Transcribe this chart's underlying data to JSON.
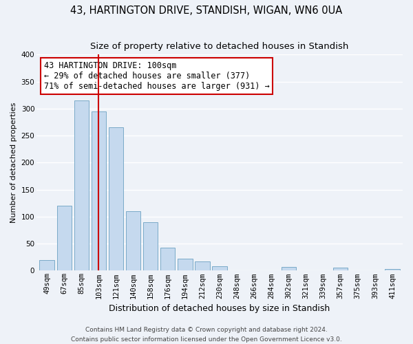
{
  "title": "43, HARTINGTON DRIVE, STANDISH, WIGAN, WN6 0UA",
  "subtitle": "Size of property relative to detached houses in Standish",
  "xlabel": "Distribution of detached houses by size in Standish",
  "ylabel": "Number of detached properties",
  "bar_labels": [
    "49sqm",
    "67sqm",
    "85sqm",
    "103sqm",
    "121sqm",
    "140sqm",
    "158sqm",
    "176sqm",
    "194sqm",
    "212sqm",
    "230sqm",
    "248sqm",
    "266sqm",
    "284sqm",
    "302sqm",
    "321sqm",
    "339sqm",
    "357sqm",
    "375sqm",
    "393sqm",
    "411sqm"
  ],
  "bar_values": [
    20,
    120,
    315,
    295,
    265,
    110,
    90,
    43,
    22,
    17,
    8,
    0,
    0,
    0,
    7,
    0,
    0,
    5,
    0,
    0,
    3
  ],
  "bar_color": "#c5d9ee",
  "bar_edgecolor": "#7aaac8",
  "vline_index": 3,
  "vline_color": "#cc0000",
  "ylim": [
    0,
    400
  ],
  "yticks": [
    0,
    50,
    100,
    150,
    200,
    250,
    300,
    350,
    400
  ],
  "annotation_title": "43 HARTINGTON DRIVE: 100sqm",
  "annotation_line1": "← 29% of detached houses are smaller (377)",
  "annotation_line2": "71% of semi-detached houses are larger (931) →",
  "annotation_box_edgecolor": "#cc0000",
  "footnote1": "Contains HM Land Registry data © Crown copyright and database right 2024.",
  "footnote2": "Contains public sector information licensed under the Open Government Licence v3.0.",
  "bg_color": "#eef2f8",
  "grid_color": "#ffffff",
  "title_fontsize": 10.5,
  "subtitle_fontsize": 9.5,
  "xlabel_fontsize": 9,
  "ylabel_fontsize": 8,
  "tick_fontsize": 7.5,
  "annotation_fontsize": 8.5,
  "footnote_fontsize": 6.5
}
